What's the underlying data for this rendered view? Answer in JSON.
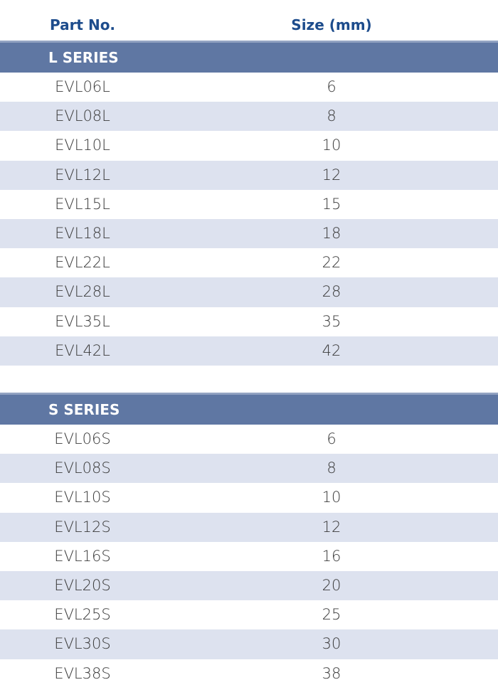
{
  "header": {
    "part_no": "Part No.",
    "size": "Size (mm)"
  },
  "sections": [
    {
      "title": "L SERIES",
      "rows": [
        [
          "EVL06L",
          6
        ],
        [
          "EVL08L",
          8
        ],
        [
          "EVL10L",
          10
        ],
        [
          "EVL12L",
          12
        ],
        [
          "EVL15L",
          15
        ],
        [
          "EVL18L",
          18
        ],
        [
          "EVL22L",
          22
        ],
        [
          "EVL28L",
          28
        ],
        [
          "EVL35L",
          35
        ],
        [
          "EVL42L",
          42
        ]
      ]
    },
    {
      "title": "S SERIES",
      "rows": [
        [
          "EVL06S",
          6
        ],
        [
          "EVL08S",
          8
        ],
        [
          "EVL10S",
          10
        ],
        [
          "EVL12S",
          12
        ],
        [
          "EVL16S",
          16
        ],
        [
          "EVL20S",
          20
        ],
        [
          "EVL25S",
          25
        ],
        [
          "EVL30S",
          30
        ],
        [
          "EVL38S",
          38
        ]
      ]
    }
  ]
}
